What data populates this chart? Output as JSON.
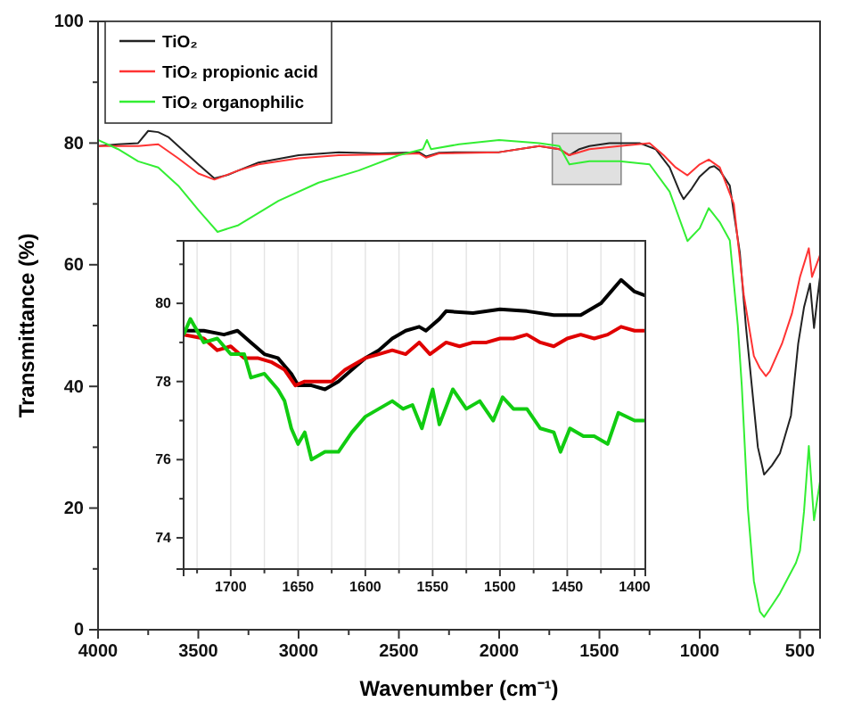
{
  "chart_data": [
    {
      "type": "line",
      "xlabel": "Wavenumber (cm⁻¹)",
      "ylabel": "Transmittance (%)",
      "xlim": [
        4000,
        400
      ],
      "ylim": [
        0,
        100
      ],
      "xticks": [
        4000,
        {
          "value": 3750,
          "label": null
        },
        3500,
        {
          "value": 3250,
          "label": null
        },
        3000,
        {
          "value": 2750,
          "label": null
        },
        2500,
        {
          "value": 2250,
          "label": null
        },
        2000,
        {
          "value": 1750,
          "label": null
        },
        1500,
        {
          "value": 1250,
          "label": null
        },
        1000,
        {
          "value": 750,
          "label": null
        },
        500
      ],
      "yticks": [
        0,
        {
          "value": 10,
          "label": null
        },
        20,
        {
          "value": 30,
          "label": null
        },
        40,
        {
          "value": 50,
          "label": null
        },
        60,
        {
          "value": 70,
          "label": null
        },
        80,
        {
          "value": 90,
          "label": null
        },
        100
      ],
      "legend": "top left",
      "grid": false,
      "line_style": "solid",
      "marker": "none",
      "series": [
        {
          "name": "TiO₂",
          "color": "#222222",
          "x": [
            4000,
            3900,
            3800,
            3750,
            3700,
            3650,
            3600,
            3550,
            3500,
            3420,
            3350,
            3300,
            3200,
            3000,
            2800,
            2600,
            2400,
            2365,
            2300,
            2200,
            2000,
            1800,
            1700,
            1650,
            1600,
            1550,
            1450,
            1300,
            1220,
            1150,
            1100,
            1080,
            1040,
            1000,
            950,
            928,
            900,
            850,
            800,
            770,
            740,
            710,
            679,
            640,
            600,
            545,
            509,
            480,
            450,
            430,
            415,
            400
          ],
          "values": [
            79.5,
            79.8,
            80,
            82,
            81.8,
            81,
            79.5,
            78,
            76.5,
            74.2,
            74.8,
            75.5,
            76.8,
            78,
            78.5,
            78.3,
            78.5,
            77.8,
            78.4,
            78.5,
            78.5,
            79.5,
            79,
            78,
            79,
            79.5,
            80,
            80,
            79,
            76,
            72,
            70.8,
            72.5,
            74.5,
            76,
            76.2,
            75.5,
            73,
            62,
            50,
            40,
            30,
            25.5,
            27,
            29,
            35.2,
            47,
            53,
            56.9,
            49.6,
            54,
            58
          ]
        },
        {
          "name": "TiO₂ propionic acid",
          "color": "#ff3333",
          "x": [
            4000,
            3900,
            3800,
            3700,
            3600,
            3500,
            3420,
            3300,
            3200,
            3000,
            2800,
            2500,
            2400,
            2365,
            2300,
            2000,
            1800,
            1700,
            1650,
            1550,
            1400,
            1250,
            1180,
            1120,
            1061,
            1000,
            955,
            900,
            830,
            780,
            730,
            700,
            670,
            650,
            590,
            540,
            500,
            456,
            440,
            400
          ],
          "values": [
            79.5,
            79.5,
            79.5,
            79.8,
            77.5,
            75,
            74,
            75.5,
            76.5,
            77.5,
            78,
            78.2,
            78.3,
            77.6,
            78.3,
            78.5,
            79.5,
            79,
            78,
            79,
            79.5,
            80,
            78,
            76,
            74.7,
            76.5,
            77.3,
            76,
            70,
            55,
            45,
            43,
            41.7,
            42.5,
            47,
            52,
            58,
            62.7,
            58,
            61.6
          ]
        },
        {
          "name": "TiO₂ organophilic",
          "color": "#33ee33",
          "x": [
            4000,
            3900,
            3800,
            3700,
            3600,
            3500,
            3404,
            3300,
            3100,
            2900,
            2700,
            2500,
            2380,
            2360,
            2340,
            2200,
            2000,
            1800,
            1700,
            1650,
            1550,
            1400,
            1250,
            1150,
            1061,
            1000,
            955,
            900,
            850,
            810,
            790,
            760,
            730,
            700,
            679,
            640,
            600,
            560,
            520,
            500,
            480,
            456,
            430,
            400
          ],
          "values": [
            80.5,
            79,
            77,
            76,
            73,
            69,
            65.4,
            66.5,
            70.5,
            73.5,
            75.5,
            78,
            79,
            80.5,
            79,
            79.8,
            80.5,
            80,
            79.5,
            76.5,
            77,
            77,
            76.5,
            72,
            63.9,
            66,
            69.3,
            67,
            64,
            50,
            40,
            20,
            8,
            3,
            2.1,
            4,
            6,
            8.5,
            11,
            13,
            19.4,
            30.2,
            18,
            24.4
          ]
        }
      ]
    },
    {
      "type": "line",
      "xlim": [
        1735,
        1392
      ],
      "ylim": [
        73.2,
        81.6
      ],
      "xticks": [
        {
          "value": 1725,
          "label": null
        },
        1700,
        {
          "value": 1675,
          "label": null
        },
        1650,
        {
          "value": 1625,
          "label": null
        },
        1600,
        {
          "value": 1575,
          "label": null
        },
        1550,
        {
          "value": 1525,
          "label": null
        },
        1500,
        {
          "value": 1475,
          "label": null
        },
        1450,
        {
          "value": 1425,
          "label": null
        },
        1400
      ],
      "yticks": [
        74,
        {
          "value": 75,
          "label": null
        },
        76,
        {
          "value": 77,
          "label": null
        },
        78,
        {
          "value": 79,
          "label": null
        },
        80,
        {
          "value": 81,
          "label": null
        }
      ],
      "grid": "x",
      "legend": false,
      "line_style": "solid",
      "marker": "none",
      "series": [
        {
          "color": "#000000",
          "x": [
            1735,
            1720,
            1705,
            1695,
            1685,
            1675,
            1665,
            1655,
            1650,
            1640,
            1630,
            1620,
            1610,
            1600,
            1590,
            1580,
            1570,
            1560,
            1555,
            1545,
            1540,
            1520,
            1500,
            1480,
            1460,
            1440,
            1425,
            1410,
            1400,
            1392
          ],
          "values": [
            79.3,
            79.3,
            79.2,
            79.3,
            79.0,
            78.7,
            78.6,
            78.2,
            77.9,
            77.9,
            77.8,
            78.0,
            78.3,
            78.6,
            78.8,
            79.1,
            79.3,
            79.4,
            79.3,
            79.6,
            79.8,
            79.75,
            79.85,
            79.8,
            79.7,
            79.7,
            80.0,
            80.6,
            80.3,
            80.2
          ]
        },
        {
          "color": "#e00000",
          "x": [
            1735,
            1720,
            1710,
            1700,
            1690,
            1680,
            1670,
            1660,
            1652,
            1645,
            1635,
            1625,
            1615,
            1600,
            1590,
            1580,
            1570,
            1560,
            1552,
            1540,
            1530,
            1520,
            1510,
            1500,
            1490,
            1480,
            1470,
            1460,
            1450,
            1440,
            1430,
            1420,
            1410,
            1400,
            1392
          ],
          "values": [
            79.2,
            79.1,
            78.8,
            78.9,
            78.6,
            78.6,
            78.5,
            78.3,
            77.9,
            78.0,
            78.0,
            78.0,
            78.3,
            78.6,
            78.7,
            78.8,
            78.7,
            79.0,
            78.7,
            79.0,
            78.9,
            79.0,
            79.0,
            79.1,
            79.1,
            79.2,
            79.0,
            78.9,
            79.1,
            79.2,
            79.1,
            79.2,
            79.4,
            79.3,
            79.3
          ]
        },
        {
          "color": "#11cc11",
          "x": [
            1735,
            1730,
            1720,
            1710,
            1700,
            1690,
            1685,
            1675,
            1665,
            1660,
            1655,
            1650,
            1645,
            1640,
            1630,
            1620,
            1610,
            1600,
            1590,
            1580,
            1572,
            1565,
            1558,
            1550,
            1545,
            1535,
            1525,
            1515,
            1505,
            1498,
            1490,
            1480,
            1470,
            1460,
            1455,
            1448,
            1438,
            1430,
            1420,
            1412,
            1400,
            1392
          ],
          "values": [
            79.2,
            79.6,
            79.0,
            79.1,
            78.7,
            78.7,
            78.1,
            78.2,
            77.8,
            77.5,
            76.8,
            76.4,
            76.7,
            76.0,
            76.2,
            76.2,
            76.7,
            77.1,
            77.3,
            77.5,
            77.3,
            77.4,
            76.8,
            77.8,
            76.9,
            77.8,
            77.3,
            77.5,
            77.0,
            77.6,
            77.3,
            77.3,
            76.8,
            76.7,
            76.2,
            76.8,
            76.6,
            76.6,
            76.4,
            77.2,
            77.0,
            77.0
          ]
        }
      ]
    }
  ]
}
